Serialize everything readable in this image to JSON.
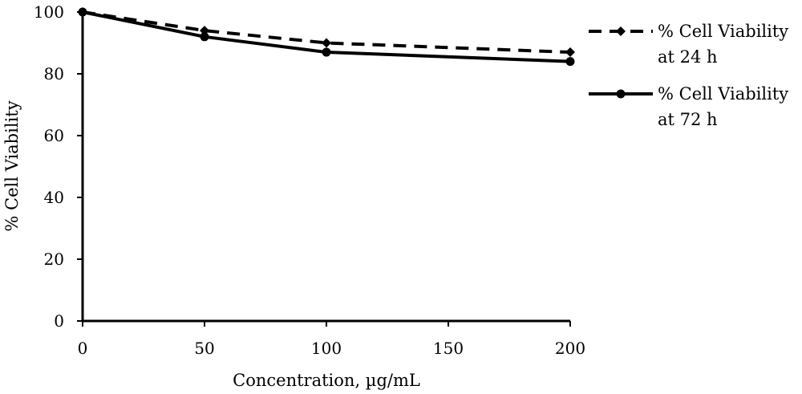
{
  "chart_data": {
    "type": "line",
    "title": "",
    "xlabel": "Concentration, µg/mL",
    "ylabel": "% Cell Viability",
    "x": [
      0,
      50,
      100,
      200
    ],
    "xlim": [
      0,
      200
    ],
    "ylim": [
      0,
      100
    ],
    "xticks": [
      "0",
      "50",
      "100",
      "150",
      "200"
    ],
    "yticks": [
      "0",
      "20",
      "40",
      "60",
      "80",
      "100"
    ],
    "grid": false,
    "legend_position": "right",
    "series": [
      {
        "name": "% Cell Viability at 24 h",
        "legend_lines": [
          "% Cell Viability",
          "at 24 h"
        ],
        "values": [
          100,
          94,
          90,
          87
        ],
        "line_style": "dashed",
        "marker": "diamond",
        "color": "#000000"
      },
      {
        "name": "% Cell Viability at 72 h",
        "legend_lines": [
          "%  Cell Viability",
          "at 72 h"
        ],
        "values": [
          100,
          92,
          87,
          84
        ],
        "line_style": "solid",
        "marker": "circle",
        "color": "#000000"
      }
    ]
  }
}
